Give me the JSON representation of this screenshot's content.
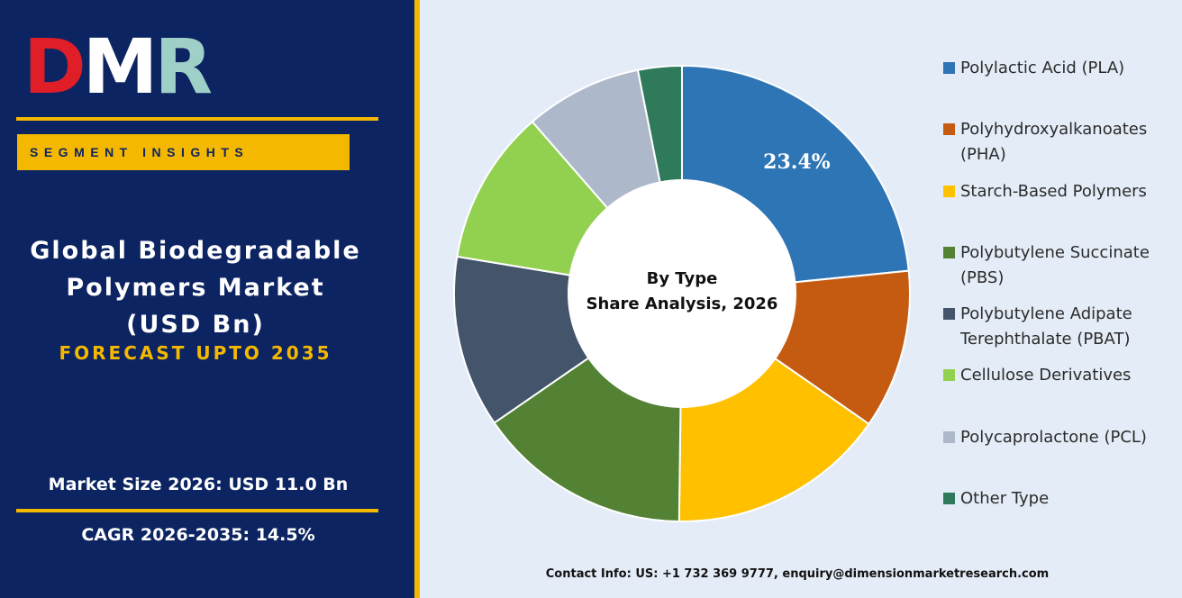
{
  "brand": {
    "logo_text": "DMR"
  },
  "left_panel": {
    "segment_label": "SEGMENT INSIGHTS",
    "title_lines": [
      "Global Biodegradable",
      "Polymers Market",
      "(USD Bn)"
    ],
    "forecast": "FORECAST UPTO 2035",
    "market_size": "Market Size 2026: USD  11.0 Bn",
    "cagr": "CAGR 2026-2035: 14.5%"
  },
  "footer": {
    "contact": "Contact Info: US: +1 732 369 9777, enquiry@dimensionmarketresearch.com"
  },
  "chart_data": {
    "type": "pie",
    "style": "donut",
    "title": "",
    "center_label": [
      "By Type",
      "Share Analysis, 2026"
    ],
    "unit": "%",
    "categories": [
      "Polylactic Acid (PLA)",
      "Polyhydroxyalkanoates (PHA)",
      "Starch-Based Polymers",
      "Polybutylene Succinate (PBS)",
      "Polybutylene Adipate Terephthalate (PBAT)",
      "Cellulose Derivatives",
      "Polycaprolactone (PCL)",
      "Other Type"
    ],
    "legend_lines": [
      [
        "Polylactic Acid (PLA)"
      ],
      [
        "Polyhydroxyalkanoates",
        "(PHA)"
      ],
      [
        "Starch-Based Polymers"
      ],
      [
        "Polybutylene Succinate",
        "(PBS)"
      ],
      [
        "Polybutylene Adipate",
        "Terephthalate (PBAT)"
      ],
      [
        "Cellulose Derivatives"
      ],
      [
        "Polycaprolactone (PCL)"
      ],
      [
        "Other Type"
      ]
    ],
    "values": [
      23.4,
      11.3,
      15.5,
      15.2,
      12.2,
      11.0,
      8.3,
      3.1
    ],
    "data_labels": [
      "23.4%",
      "",
      "",
      "",
      "",
      "",
      "",
      ""
    ],
    "colors": [
      "#2e75b6",
      "#c55a11",
      "#ffc000",
      "#548235",
      "#44546a",
      "#92d050",
      "#adb9ca",
      "#2e7a5a"
    ],
    "legend_position": "right"
  }
}
